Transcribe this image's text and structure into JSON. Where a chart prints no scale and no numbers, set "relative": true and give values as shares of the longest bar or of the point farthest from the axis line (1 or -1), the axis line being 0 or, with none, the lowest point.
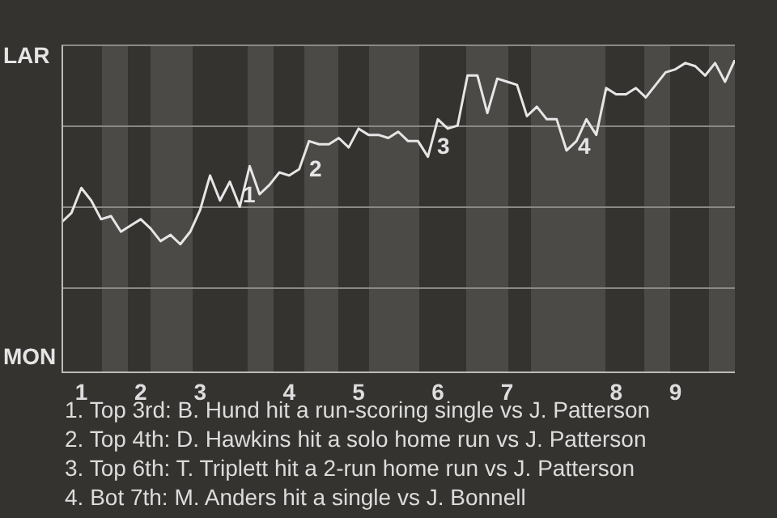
{
  "chart_data": {
    "type": "line",
    "categories": [
      null,
      null,
      "1",
      null,
      null,
      null,
      null,
      null,
      "2",
      null,
      null,
      null,
      null,
      null,
      "3",
      null,
      null,
      null,
      null,
      null,
      null,
      null,
      null,
      "4",
      null,
      null,
      null,
      null,
      null,
      null,
      "5",
      null,
      null,
      null,
      null,
      null,
      null,
      null,
      "6",
      null,
      null,
      null,
      null,
      null,
      null,
      "7",
      null,
      null,
      null,
      null,
      null,
      null,
      null,
      null,
      null,
      null,
      "8",
      null,
      null,
      null,
      null,
      null,
      "9",
      null,
      null,
      null,
      null,
      null,
      null
    ],
    "series": [
      {
        "color": "#e6e6e6",
        "values": [
          0.48,
          0.51,
          0.59,
          0.55,
          0.49,
          0.5,
          0.45,
          0.47,
          0.49,
          0.46,
          0.42,
          0.44,
          0.41,
          0.45,
          0.52,
          0.63,
          0.55,
          0.61,
          0.53,
          0.66,
          0.57,
          0.6,
          0.64,
          0.63,
          0.65,
          0.74,
          0.73,
          0.73,
          0.75,
          0.72,
          0.78,
          0.76,
          0.76,
          0.75,
          0.77,
          0.74,
          0.74,
          0.69,
          0.81,
          0.78,
          0.79,
          0.95,
          0.95,
          0.83,
          0.94,
          0.93,
          0.92,
          0.82,
          0.85,
          0.81,
          0.81,
          0.71,
          0.74,
          0.81,
          0.76,
          0.91,
          0.89,
          0.89,
          0.91,
          0.88,
          0.92,
          0.96,
          0.97,
          0.99,
          0.98,
          0.95,
          0.99,
          0.93,
          1
        ]
      }
    ],
    "relative": true,
    "grid": "y",
    "marker": "none",
    "line_style": "solid",
    "annotations": [
      "LAR",
      "MON",
      "1",
      "2",
      "3",
      "4",
      "1. Top 3rd: B. Hund hit a run-scoring single vs J. Patterson",
      "2. Top 4th: D. Hawkins hit a solo home run vs J. Patterson",
      "3. Top 6th: T. Triplett hit a 2-run home run vs J. Patterson",
      "4. Bot 7th: M. Anders hit a single vs J. Bonnell"
    ]
  }
}
